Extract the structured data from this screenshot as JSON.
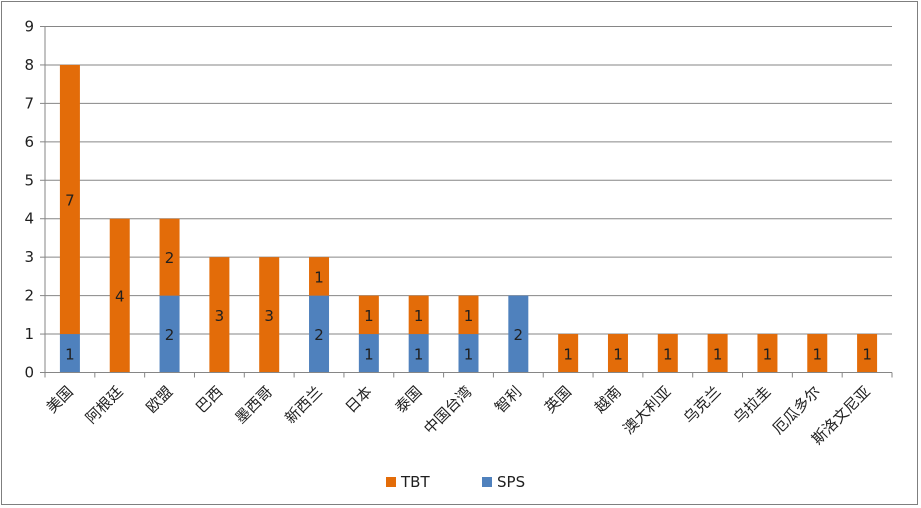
{
  "chart_data": {
    "type": "bar",
    "stacked": true,
    "categories": [
      "美国",
      "阿根廷",
      "欧盟",
      "巴西",
      "墨西哥",
      "新西兰",
      "日本",
      "泰国",
      "中国台湾",
      "智利",
      "英国",
      "越南",
      "澳大利亚",
      "乌克兰",
      "乌拉圭",
      "厄瓜多尔",
      "斯洛文尼亚"
    ],
    "series": [
      {
        "name": "SPS",
        "color": "#4f81bd",
        "values": [
          1,
          0,
          2,
          0,
          0,
          2,
          1,
          1,
          1,
          2,
          0,
          0,
          0,
          0,
          0,
          0,
          0
        ]
      },
      {
        "name": "TBT",
        "color": "#e36c09",
        "values": [
          7,
          4,
          2,
          3,
          3,
          1,
          1,
          1,
          1,
          0,
          1,
          1,
          1,
          1,
          1,
          1,
          1
        ]
      }
    ],
    "ylim": [
      0,
      9
    ],
    "yticks": [
      0,
      1,
      2,
      3,
      4,
      5,
      6,
      7,
      8,
      9
    ],
    "grid": true,
    "legend_position": "bottom",
    "legend_order": [
      "TBT",
      "SPS"
    ],
    "title": "",
    "xlabel": "",
    "ylabel": ""
  }
}
